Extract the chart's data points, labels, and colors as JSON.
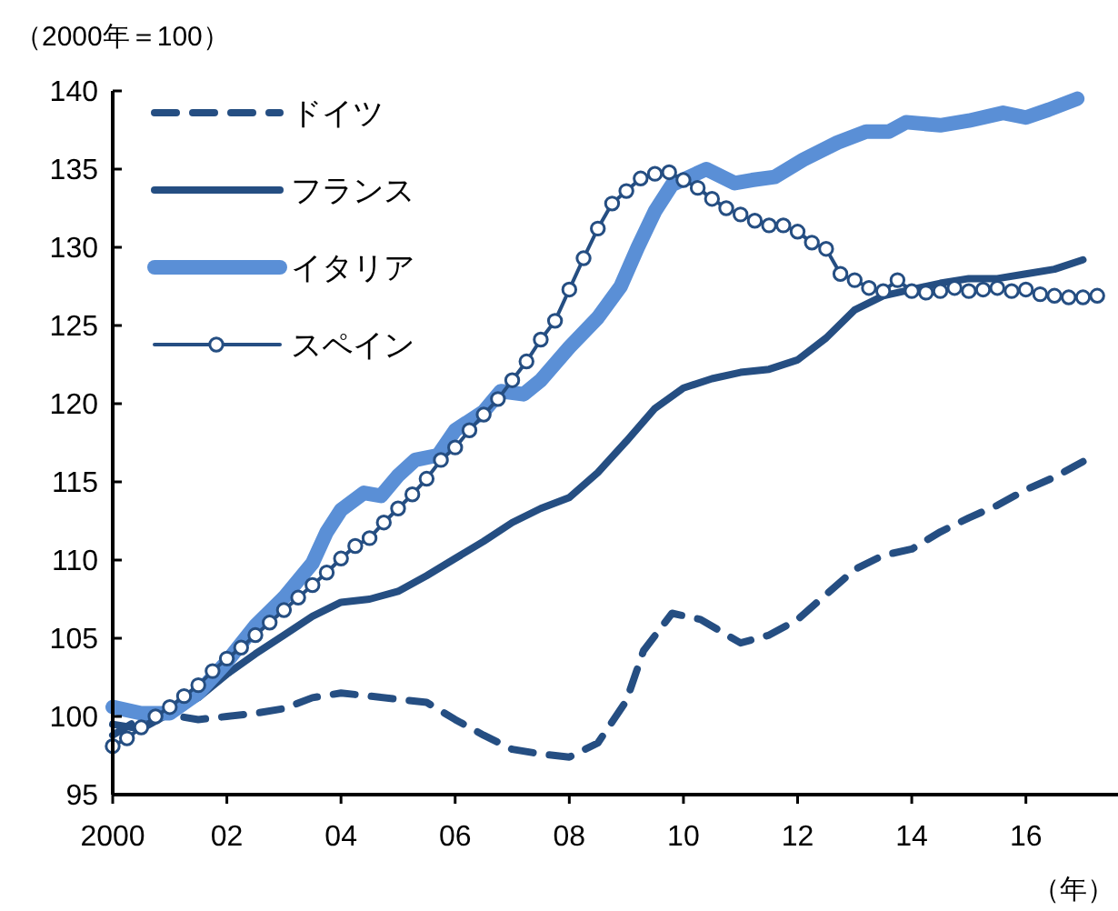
{
  "chart_data": {
    "type": "line",
    "ylabel": "（2000年＝100）",
    "xlabel": "（年）",
    "xlim": [
      2000,
      2017.55
    ],
    "ylim": [
      95,
      140
    ],
    "xticks": [
      {
        "value": 2000,
        "label": "2000"
      },
      {
        "value": 2002,
        "label": "02"
      },
      {
        "value": 2004,
        "label": "04"
      },
      {
        "value": 2006,
        "label": "06"
      },
      {
        "value": 2008,
        "label": "08"
      },
      {
        "value": 2010,
        "label": "10"
      },
      {
        "value": 2012,
        "label": "12"
      },
      {
        "value": 2014,
        "label": "14"
      },
      {
        "value": 2016,
        "label": "16"
      }
    ],
    "yticks": [
      95,
      100,
      105,
      110,
      115,
      120,
      125,
      130,
      135,
      140
    ],
    "grid": false,
    "legend": "top left",
    "series": [
      {
        "name": "ドイツ",
        "color": "#254e82",
        "line_style": "dashed",
        "marker": "none",
        "x": [
          2000,
          2000.5,
          2001,
          2001.5,
          2002,
          2002.5,
          2003,
          2003.5,
          2004,
          2004.5,
          2005,
          2005.5,
          2006,
          2006.5,
          2007,
          2007.5,
          2008,
          2008.5,
          2009,
          2009.3,
          2009.8,
          2010.3,
          2011,
          2011.5,
          2012,
          2012.5,
          2013,
          2013.5,
          2014,
          2014.5,
          2015,
          2015.5,
          2016,
          2016.5,
          2017
        ],
        "values": [
          98.8,
          99.9,
          100.1,
          99.8,
          100.0,
          100.2,
          100.5,
          101.2,
          101.5,
          101.3,
          101.1,
          100.9,
          99.8,
          98.8,
          97.9,
          97.6,
          97.4,
          98.3,
          101.0,
          104.2,
          106.6,
          106.2,
          104.7,
          105.2,
          106.2,
          107.8,
          109.4,
          110.3,
          110.7,
          111.8,
          112.7,
          113.5,
          114.5,
          115.3,
          116.3
        ]
      },
      {
        "name": "フランス",
        "color": "#254e82",
        "line_style": "solid",
        "marker": "none",
        "x": [
          2000,
          2000.5,
          2001,
          2001.5,
          2002,
          2002.5,
          2003,
          2003.5,
          2004,
          2004.5,
          2005,
          2005.5,
          2006,
          2006.5,
          2007,
          2007.5,
          2008,
          2008.5,
          2009,
          2009.5,
          2010,
          2010.5,
          2011,
          2011.5,
          2012,
          2012.5,
          2013,
          2013.5,
          2014,
          2014.5,
          2015,
          2015.5,
          2016,
          2016.5,
          2017
        ],
        "values": [
          99.5,
          99.2,
          100.2,
          101.2,
          102.7,
          104.0,
          105.2,
          106.4,
          107.3,
          107.5,
          108.0,
          109.0,
          110.1,
          111.2,
          112.4,
          113.3,
          114.0,
          115.6,
          117.6,
          119.7,
          121.0,
          121.6,
          122.0,
          122.2,
          122.8,
          124.2,
          126.0,
          126.9,
          127.3,
          127.7,
          128.0,
          128.0,
          128.3,
          128.6,
          129.2
        ]
      },
      {
        "name": "イタリア",
        "color": "#5a8fd6",
        "line_style": "solid",
        "marker": "none",
        "x": [
          2000,
          2000.5,
          2001,
          2001.5,
          2002,
          2002.5,
          2003,
          2003.5,
          2003.75,
          2004,
          2004.4,
          2004.7,
          2005,
          2005.3,
          2005.7,
          2006,
          2006.5,
          2006.8,
          2007.2,
          2007.5,
          2008,
          2008.5,
          2008.9,
          2009.2,
          2009.5,
          2009.8,
          2010.4,
          2010.9,
          2011.2,
          2011.6,
          2012.1,
          2012.7,
          2013.2,
          2013.6,
          2013.9,
          2014.5,
          2015.0,
          2015.6,
          2016.0,
          2016.4,
          2016.9
        ],
        "values": [
          100.6,
          100.2,
          100.2,
          101.5,
          103.5,
          105.8,
          107.6,
          109.8,
          111.8,
          113.2,
          114.3,
          114.1,
          115.4,
          116.4,
          116.7,
          118.3,
          119.5,
          120.8,
          120.6,
          121.5,
          123.6,
          125.5,
          127.5,
          130.0,
          132.3,
          134.0,
          135.0,
          134.1,
          134.3,
          134.5,
          135.6,
          136.7,
          137.4,
          137.4,
          138.0,
          137.8,
          138.1,
          138.6,
          138.3,
          138.8,
          139.5
        ]
      },
      {
        "name": "スペイン",
        "color": "#254e82",
        "line_style": "solid",
        "marker": "circle",
        "x": [
          2000,
          2000.25,
          2000.5,
          2000.75,
          2001,
          2001.25,
          2001.5,
          2001.75,
          2002,
          2002.25,
          2002.5,
          2002.75,
          2003,
          2003.25,
          2003.5,
          2003.75,
          2004,
          2004.25,
          2004.5,
          2004.75,
          2005,
          2005.25,
          2005.5,
          2005.75,
          2006,
          2006.25,
          2006.5,
          2006.75,
          2007,
          2007.25,
          2007.5,
          2007.75,
          2008,
          2008.25,
          2008.5,
          2008.75,
          2009,
          2009.25,
          2009.5,
          2009.75,
          2010,
          2010.25,
          2010.5,
          2010.75,
          2011,
          2011.25,
          2011.5,
          2011.75,
          2012,
          2012.25,
          2012.5,
          2012.75,
          2013,
          2013.25,
          2013.5,
          2013.75,
          2014,
          2014.25,
          2014.5,
          2014.75,
          2015,
          2015.25,
          2015.5,
          2015.75,
          2016,
          2016.25,
          2016.5,
          2016.75,
          2017,
          2017.25
        ],
        "values": [
          98.1,
          98.6,
          99.3,
          100.0,
          100.6,
          101.3,
          102.0,
          102.9,
          103.7,
          104.4,
          105.2,
          106.0,
          106.8,
          107.6,
          108.4,
          109.2,
          110.1,
          110.9,
          111.4,
          112.4,
          113.3,
          114.2,
          115.2,
          116.4,
          117.2,
          118.3,
          119.3,
          120.3,
          121.5,
          122.7,
          124.1,
          125.3,
          127.3,
          129.3,
          131.2,
          132.8,
          133.6,
          134.4,
          134.7,
          134.8,
          134.3,
          133.8,
          133.1,
          132.5,
          132.1,
          131.7,
          131.4,
          131.4,
          131.0,
          130.3,
          129.9,
          128.3,
          127.9,
          127.4,
          127.2,
          127.9,
          127.2,
          127.1,
          127.2,
          127.4,
          127.2,
          127.3,
          127.4,
          127.2,
          127.3,
          127.0,
          126.9,
          126.8,
          126.8,
          126.9
        ]
      }
    ]
  }
}
